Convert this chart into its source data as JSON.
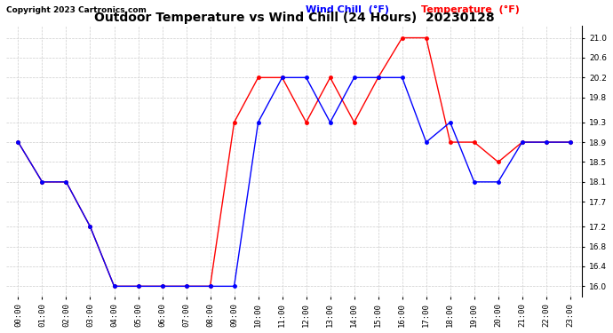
{
  "title": "Outdoor Temperature vs Wind Chill (24 Hours)  20230128",
  "copyright": "Copyright 2023 Cartronics.com",
  "legend_wind_chill": "Wind Chill  (°F)",
  "legend_temperature": "Temperature  (°F)",
  "hours": [
    "00:00",
    "01:00",
    "02:00",
    "03:00",
    "04:00",
    "05:00",
    "06:00",
    "07:00",
    "08:00",
    "09:00",
    "10:00",
    "11:00",
    "12:00",
    "13:00",
    "14:00",
    "15:00",
    "16:00",
    "17:00",
    "18:00",
    "19:00",
    "20:00",
    "21:00",
    "22:00",
    "23:00"
  ],
  "temperature": [
    18.9,
    18.1,
    18.1,
    17.2,
    16.0,
    16.0,
    16.0,
    16.0,
    16.0,
    19.3,
    20.2,
    20.2,
    19.3,
    20.2,
    19.3,
    20.2,
    21.0,
    21.0,
    18.9,
    18.9,
    18.5,
    18.9,
    18.9,
    18.9
  ],
  "wind_chill": [
    18.9,
    18.1,
    18.1,
    17.2,
    16.0,
    16.0,
    16.0,
    16.0,
    16.0,
    16.0,
    19.3,
    20.2,
    20.2,
    19.3,
    20.2,
    20.2,
    20.2,
    18.9,
    19.3,
    18.1,
    18.1,
    18.9,
    18.9,
    18.9
  ],
  "ylim_min": 15.8,
  "ylim_max": 21.25,
  "yticks": [
    16.0,
    16.4,
    16.8,
    17.2,
    17.7,
    18.1,
    18.5,
    18.9,
    19.3,
    19.8,
    20.2,
    20.6,
    21.0
  ],
  "temp_color": "red",
  "wind_chill_color": "blue",
  "bg_color": "white",
  "grid_color": "#cccccc",
  "title_fontsize": 10,
  "copyright_fontsize": 6.5,
  "legend_fontsize": 8,
  "tick_fontsize": 6.5
}
